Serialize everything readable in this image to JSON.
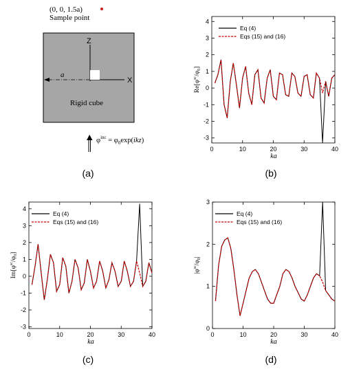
{
  "figure": {
    "panel_labels": [
      "(a)",
      "(b)",
      "(c)",
      "(d)"
    ],
    "diagram": {
      "sample_coord": "(0, 0, 1.5a)",
      "sample_label": "Sample point",
      "axis_z": "Z",
      "axis_x": "X",
      "dim_label": "a",
      "cube_label": "Rigid cube",
      "incident_label": "φinc = φ0exp(ikz)",
      "colors": {
        "cube_fill": "#a6a6a6",
        "sample_dot": "#d01c1c"
      }
    }
  },
  "chart_data": [
    {
      "type": "line",
      "panel": "b",
      "xlabel": "ka",
      "ylabel": "Re[φsc/φ0]",
      "xlim": [
        0,
        40
      ],
      "ylim": [
        -3.3,
        4.3
      ],
      "xticks": [
        0,
        10,
        20,
        30,
        40
      ],
      "yticks": [
        -3,
        -2,
        -1,
        0,
        1,
        2,
        3,
        4
      ],
      "legend_position": "top-right",
      "series": [
        {
          "name": "Eq (4)",
          "color": "#000000",
          "style": "solid",
          "x": [
            1,
            2,
            3,
            4,
            5,
            6,
            7,
            8,
            9,
            10,
            11,
            12,
            13,
            14,
            15,
            16,
            17,
            18,
            19,
            20,
            21,
            22,
            23,
            24,
            25,
            26,
            27,
            28,
            29,
            30,
            31,
            32,
            33,
            34,
            35,
            36,
            37,
            38,
            39,
            40
          ],
          "y": [
            0.3,
            0.8,
            1.7,
            -1.0,
            -1.8,
            0.4,
            1.5,
            0.2,
            -1.2,
            0.6,
            1.3,
            -0.3,
            -1.0,
            0.8,
            1.1,
            -0.6,
            -0.9,
            0.6,
            1.1,
            -0.5,
            -0.7,
            0.9,
            0.8,
            -0.4,
            -0.5,
            0.9,
            0.7,
            -0.3,
            -0.5,
            0.7,
            0.8,
            -0.4,
            -0.6,
            0.9,
            0.6,
            -3.3,
            0.4,
            -0.5,
            0.6,
            0.8
          ]
        },
        {
          "name": "Eqs (15) and (16)",
          "color": "#cc0000",
          "style": "dashed",
          "x": [
            1,
            2,
            3,
            4,
            5,
            6,
            7,
            8,
            9,
            10,
            11,
            12,
            13,
            14,
            15,
            16,
            17,
            18,
            19,
            20,
            21,
            22,
            23,
            24,
            25,
            26,
            27,
            28,
            29,
            30,
            31,
            32,
            33,
            34,
            35,
            36,
            37,
            38,
            39,
            40
          ],
          "y": [
            0.3,
            0.8,
            1.7,
            -1.0,
            -1.8,
            0.4,
            1.5,
            0.2,
            -1.2,
            0.6,
            1.3,
            -0.3,
            -1.0,
            0.8,
            1.1,
            -0.6,
            -0.9,
            0.6,
            1.1,
            -0.5,
            -0.7,
            0.9,
            0.8,
            -0.4,
            -0.5,
            0.9,
            0.7,
            -0.3,
            -0.5,
            0.7,
            0.8,
            -0.4,
            -0.6,
            0.9,
            0.6,
            -0.3,
            0.4,
            -0.5,
            0.6,
            0.8
          ]
        }
      ]
    },
    {
      "type": "line",
      "panel": "c",
      "xlabel": "ka",
      "ylabel": "Im[φsc/φ0]",
      "xlim": [
        0,
        40
      ],
      "ylim": [
        -3.1,
        4.4
      ],
      "xticks": [
        0,
        10,
        20,
        30,
        40
      ],
      "yticks": [
        -3,
        -2,
        -1,
        0,
        1,
        2,
        3,
        4
      ],
      "legend_position": "top-left",
      "series": [
        {
          "name": "Eq (4)",
          "color": "#000000",
          "style": "solid",
          "x": [
            1,
            2,
            3,
            4,
            5,
            6,
            7,
            8,
            9,
            10,
            11,
            12,
            13,
            14,
            15,
            16,
            17,
            18,
            19,
            20,
            21,
            22,
            23,
            24,
            25,
            26,
            27,
            28,
            29,
            30,
            31,
            32,
            33,
            34,
            35,
            36,
            37,
            38,
            39,
            40
          ],
          "y": [
            -0.5,
            0.6,
            1.9,
            0.2,
            -1.4,
            -0.2,
            1.3,
            0.8,
            -0.9,
            -0.5,
            1.1,
            0.6,
            -1.0,
            -0.3,
            1.0,
            0.5,
            -0.8,
            -0.4,
            1.0,
            0.3,
            -0.7,
            -0.3,
            0.9,
            0.3,
            -0.7,
            -0.2,
            0.8,
            0.3,
            -0.6,
            -0.3,
            0.9,
            0.3,
            -0.6,
            -0.3,
            0.9,
            4.3,
            -0.6,
            -0.3,
            0.8,
            0.2
          ]
        },
        {
          "name": "Eqs (15) and (16)",
          "color": "#cc0000",
          "style": "dashed",
          "x": [
            1,
            2,
            3,
            4,
            5,
            6,
            7,
            8,
            9,
            10,
            11,
            12,
            13,
            14,
            15,
            16,
            17,
            18,
            19,
            20,
            21,
            22,
            23,
            24,
            25,
            26,
            27,
            28,
            29,
            30,
            31,
            32,
            33,
            34,
            35,
            36,
            37,
            38,
            39,
            40
          ],
          "y": [
            -0.5,
            0.6,
            1.9,
            0.2,
            -1.4,
            -0.2,
            1.3,
            0.8,
            -0.9,
            -0.5,
            1.1,
            0.6,
            -1.0,
            -0.3,
            1.0,
            0.5,
            -0.8,
            -0.4,
            1.0,
            0.3,
            -0.7,
            -0.3,
            0.9,
            0.3,
            -0.7,
            -0.2,
            0.8,
            0.3,
            -0.6,
            -0.3,
            0.9,
            0.3,
            -0.6,
            -0.3,
            0.9,
            0.2,
            -0.6,
            -0.3,
            0.8,
            0.2
          ]
        }
      ]
    },
    {
      "type": "line",
      "panel": "d",
      "xlabel": "ka",
      "ylabel": "|φsc/φ0|",
      "xlim": [
        0,
        40
      ],
      "ylim": [
        0,
        3
      ],
      "xticks": [
        0,
        10,
        20,
        30,
        40
      ],
      "yticks": [
        0,
        1,
        2,
        3
      ],
      "legend_position": "top-left",
      "series": [
        {
          "name": "Eq (4)",
          "color": "#000000",
          "style": "solid",
          "x": [
            1,
            2,
            3,
            4,
            5,
            6,
            7,
            8,
            9,
            10,
            11,
            12,
            13,
            14,
            15,
            16,
            17,
            18,
            19,
            20,
            21,
            22,
            23,
            24,
            25,
            26,
            27,
            28,
            29,
            30,
            31,
            32,
            33,
            34,
            35,
            36,
            37,
            38,
            39,
            40
          ],
          "y": [
            0.65,
            1.5,
            1.95,
            2.1,
            2.15,
            1.9,
            1.4,
            0.8,
            0.3,
            0.6,
            0.9,
            1.2,
            1.35,
            1.4,
            1.3,
            1.1,
            0.9,
            0.7,
            0.6,
            0.6,
            0.8,
            1.0,
            1.3,
            1.4,
            1.35,
            1.2,
            1.0,
            0.85,
            0.7,
            0.65,
            0.8,
            1.0,
            1.2,
            1.3,
            1.25,
            3.0,
            0.9,
            0.8,
            0.7,
            0.65
          ]
        },
        {
          "name": "Eqs (15) and (16)",
          "color": "#cc0000",
          "style": "dashed",
          "x": [
            1,
            2,
            3,
            4,
            5,
            6,
            7,
            8,
            9,
            10,
            11,
            12,
            13,
            14,
            15,
            16,
            17,
            18,
            19,
            20,
            21,
            22,
            23,
            24,
            25,
            26,
            27,
            28,
            29,
            30,
            31,
            32,
            33,
            34,
            35,
            36,
            37,
            38,
            39,
            40
          ],
          "y": [
            0.65,
            1.5,
            1.95,
            2.1,
            2.15,
            1.9,
            1.4,
            0.8,
            0.3,
            0.6,
            0.9,
            1.2,
            1.35,
            1.4,
            1.3,
            1.1,
            0.9,
            0.7,
            0.6,
            0.6,
            0.8,
            1.0,
            1.3,
            1.4,
            1.35,
            1.2,
            1.0,
            0.85,
            0.7,
            0.65,
            0.8,
            1.0,
            1.2,
            1.3,
            1.25,
            1.1,
            0.9,
            0.8,
            0.7,
            0.65
          ]
        }
      ]
    }
  ]
}
